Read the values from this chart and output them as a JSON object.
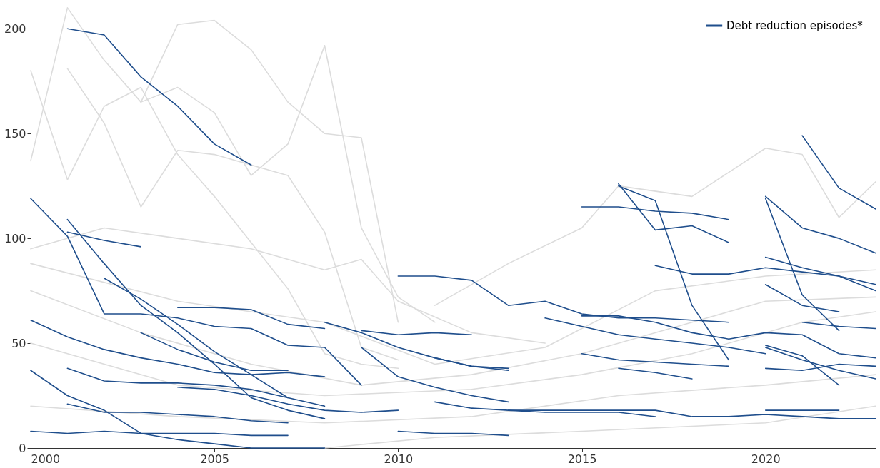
{
  "chart_data": {
    "type": "line",
    "xlim": [
      2000,
      2023
    ],
    "xticks": [
      2000,
      2005,
      2010,
      2015,
      2020
    ],
    "ylim": [
      0,
      212
    ],
    "yticks": [
      0,
      50,
      100,
      150,
      200
    ],
    "grid": false,
    "legend": "top right",
    "marker": "none",
    "line_style": "solid",
    "series": [
      {
        "color": "#dcdcdc",
        "x": [
          2000,
          2001,
          2002,
          2003,
          2004,
          2005,
          2006,
          2007,
          2008,
          2009,
          2010
        ],
        "values": [
          180,
          128,
          163,
          172,
          140,
          120,
          98,
          76,
          45,
          40,
          38
        ]
      },
      {
        "color": "#dcdcdc",
        "x": [
          2000,
          2001,
          2002,
          2003,
          2004,
          2005,
          2006,
          2007,
          2008,
          2009,
          2010
        ],
        "values": [
          137,
          210,
          185,
          165,
          202,
          204,
          190,
          165,
          150,
          148,
          60
        ]
      },
      {
        "color": "#dcdcdc",
        "x": [
          2001,
          2002,
          2003,
          2004,
          2005,
          2006,
          2007,
          2008,
          2009,
          2010
        ],
        "values": [
          181,
          155,
          115,
          142,
          140,
          135,
          130,
          103,
          48,
          42
        ]
      },
      {
        "color": "#dcdcdc",
        "x": [
          2003,
          2004,
          2005,
          2006,
          2007,
          2008,
          2009,
          2010,
          2011
        ],
        "values": [
          165,
          172,
          160,
          130,
          145,
          192,
          105,
          72,
          60
        ]
      },
      {
        "color": "#dcdcdc",
        "x": [
          2000,
          2002,
          2004,
          2006,
          2008,
          2009,
          2010,
          2012,
          2014
        ],
        "values": [
          95,
          105,
          100,
          95,
          85,
          90,
          70,
          55,
          50
        ]
      },
      {
        "color": "#dcdcdc",
        "x": [
          2011,
          2013,
          2015,
          2016,
          2018,
          2020,
          2021,
          2022,
          2023
        ],
        "values": [
          68,
          88,
          105,
          125,
          120,
          143,
          140,
          110,
          127
        ]
      },
      {
        "color": "#dcdcdc",
        "x": [
          2000,
          2003,
          2006,
          2009,
          2012,
          2015,
          2018,
          2020,
          2023
        ],
        "values": [
          75,
          55,
          40,
          30,
          35,
          45,
          60,
          70,
          72
        ]
      },
      {
        "color": "#dcdcdc",
        "x": [
          2000,
          2004,
          2008,
          2012,
          2015,
          2018,
          2021,
          2023
        ],
        "values": [
          50,
          30,
          25,
          28,
          35,
          45,
          60,
          65
        ]
      },
      {
        "color": "#dcdcdc",
        "x": [
          2000,
          2004,
          2008,
          2012,
          2016,
          2020,
          2023
        ],
        "values": [
          20,
          15,
          12,
          15,
          25,
          30,
          35
        ]
      },
      {
        "color": "#dcdcdc",
        "x": [
          2000,
          2004,
          2008,
          2011,
          2014,
          2017,
          2020,
          2023
        ],
        "values": [
          88,
          70,
          60,
          40,
          48,
          75,
          82,
          85
        ]
      },
      {
        "color": "#dcdcdc",
        "x": [
          2008,
          2011,
          2015,
          2020,
          2023
        ],
        "values": [
          0,
          5,
          8,
          12,
          20
        ]
      },
      {
        "name": "Debt reduction episodes*",
        "color": "#1f4e8c",
        "x": [
          2001,
          2002,
          2003,
          2004,
          2005,
          2006
        ],
        "values": [
          200,
          197,
          177,
          163,
          145,
          135
        ]
      },
      {
        "color": "#1f4e8c",
        "x": [
          2000,
          2001,
          2002,
          2003,
          2004,
          2005,
          2006,
          2007,
          2008,
          2009
        ],
        "values": [
          119,
          101,
          64,
          64,
          62,
          58,
          57,
          49,
          48,
          30
        ]
      },
      {
        "color": "#1f4e8c",
        "x": [
          2001,
          2002,
          2003,
          2004,
          2005,
          2006,
          2007,
          2008
        ],
        "values": [
          109,
          88,
          68,
          55,
          40,
          24,
          18,
          14
        ]
      },
      {
        "color": "#1f4e8c",
        "x": [
          2001,
          2002,
          2003
        ],
        "values": [
          103,
          99,
          96
        ]
      },
      {
        "color": "#1f4e8c",
        "x": [
          2000,
          2001,
          2002,
          2003,
          2004,
          2005,
          2006,
          2007,
          2008
        ],
        "values": [
          61,
          53,
          47,
          43,
          40,
          36,
          35,
          36,
          34
        ]
      },
      {
        "color": "#1f4e8c",
        "x": [
          2000,
          2001,
          2002,
          2003,
          2004,
          2005,
          2006,
          2007,
          2008
        ],
        "values": [
          37,
          25,
          18,
          7,
          4,
          2,
          0,
          0,
          0
        ]
      },
      {
        "color": "#1f4e8c",
        "x": [
          2000,
          2001,
          2002,
          2003,
          2004,
          2005,
          2006,
          2007
        ],
        "values": [
          8,
          7,
          8,
          7,
          7,
          7,
          6,
          6
        ]
      },
      {
        "color": "#1f4e8c",
        "x": [
          2001,
          2002,
          2003,
          2004,
          2005,
          2006,
          2007
        ],
        "values": [
          38,
          32,
          31,
          31,
          30,
          28,
          24
        ]
      },
      {
        "color": "#1f4e8c",
        "x": [
          2001,
          2002,
          2003,
          2004,
          2005,
          2006,
          2007
        ],
        "values": [
          21,
          17,
          17,
          16,
          15,
          13,
          12
        ]
      },
      {
        "color": "#1f4e8c",
        "x": [
          2002,
          2003,
          2004,
          2005,
          2006,
          2007,
          2008
        ],
        "values": [
          81,
          71,
          59,
          46,
          35,
          24,
          20
        ]
      },
      {
        "color": "#1f4e8c",
        "x": [
          2004,
          2005,
          2006,
          2007,
          2008
        ],
        "values": [
          67,
          67,
          66,
          59,
          57
        ]
      },
      {
        "color": "#1f4e8c",
        "x": [
          2003,
          2004,
          2005,
          2006,
          2007
        ],
        "values": [
          55,
          47,
          41,
          37,
          37
        ]
      },
      {
        "color": "#1f4e8c",
        "x": [
          2004,
          2005,
          2006,
          2007,
          2008,
          2009,
          2010
        ],
        "values": [
          29,
          28,
          25,
          21,
          18,
          17,
          18
        ]
      },
      {
        "color": "#1f4e8c",
        "x": [
          2008,
          2009,
          2010,
          2011,
          2012,
          2013
        ],
        "values": [
          60,
          55,
          48,
          43,
          39,
          37
        ]
      },
      {
        "color": "#1f4e8c",
        "x": [
          2009,
          2010,
          2011,
          2012
        ],
        "values": [
          56,
          54,
          55,
          54
        ]
      },
      {
        "color": "#1f4e8c",
        "x": [
          2009,
          2010,
          2011,
          2012,
          2013
        ],
        "values": [
          48,
          34,
          29,
          25,
          22
        ]
      },
      {
        "color": "#1f4e8c",
        "x": [
          2010,
          2011,
          2012,
          2013,
          2014,
          2015,
          2016,
          2017,
          2018,
          2019
        ],
        "values": [
          82,
          82,
          80,
          68,
          70,
          64,
          62,
          62,
          61,
          60
        ]
      },
      {
        "color": "#1f4e8c",
        "x": [
          2011,
          2012,
          2013
        ],
        "values": [
          43,
          39,
          38
        ]
      },
      {
        "color": "#1f4e8c",
        "x": [
          2010,
          2011,
          2012,
          2013
        ],
        "values": [
          8,
          7,
          7,
          6
        ]
      },
      {
        "color": "#1f4e8c",
        "x": [
          2011,
          2012,
          2013,
          2014,
          2015,
          2016,
          2017
        ],
        "values": [
          22,
          19,
          18,
          17,
          17,
          17,
          15
        ]
      },
      {
        "color": "#1f4e8c",
        "x": [
          2014,
          2015,
          2016,
          2017,
          2018,
          2019,
          2020
        ],
        "values": [
          62,
          58,
          54,
          52,
          50,
          48,
          45
        ]
      },
      {
        "color": "#1f4e8c",
        "x": [
          2015,
          2016,
          2017,
          2018,
          2019
        ],
        "values": [
          115,
          115,
          113,
          112,
          109
        ]
      },
      {
        "color": "#1f4e8c",
        "x": [
          2016,
          2017,
          2018,
          2019
        ],
        "values": [
          126,
          104,
          106,
          98
        ]
      },
      {
        "color": "#1f4e8c",
        "x": [
          2016,
          2017,
          2018,
          2019
        ],
        "values": [
          125,
          118,
          68,
          42
        ]
      },
      {
        "color": "#1f4e8c",
        "x": [
          2017,
          2018,
          2019,
          2020,
          2021,
          2022,
          2023
        ],
        "values": [
          87,
          83,
          83,
          86,
          84,
          82,
          78
        ]
      },
      {
        "color": "#1f4e8c",
        "x": [
          2015,
          2016,
          2017,
          2018,
          2019
        ],
        "values": [
          45,
          42,
          41,
          40,
          39
        ]
      },
      {
        "color": "#1f4e8c",
        "x": [
          2016,
          2017,
          2018
        ],
        "values": [
          38,
          36,
          33
        ]
      },
      {
        "color": "#1f4e8c",
        "x": [
          2021,
          2022,
          2023
        ],
        "values": [
          149,
          124,
          114
        ]
      },
      {
        "color": "#1f4e8c",
        "x": [
          2020,
          2021,
          2022,
          2023
        ],
        "values": [
          120,
          105,
          100,
          93
        ]
      },
      {
        "color": "#1f4e8c",
        "x": [
          2020,
          2021,
          2022
        ],
        "values": [
          119,
          73,
          56
        ]
      },
      {
        "color": "#1f4e8c",
        "x": [
          2020,
          2021,
          2022,
          2023
        ],
        "values": [
          91,
          86,
          82,
          75
        ]
      },
      {
        "color": "#1f4e8c",
        "x": [
          2020,
          2021,
          2022
        ],
        "values": [
          78,
          68,
          65
        ]
      },
      {
        "color": "#1f4e8c",
        "x": [
          2020,
          2021,
          2022
        ],
        "values": [
          49,
          44,
          30
        ]
      },
      {
        "color": "#1f4e8c",
        "x": [
          2020,
          2021,
          2022,
          2023
        ],
        "values": [
          48,
          42,
          37,
          33
        ]
      },
      {
        "color": "#1f4e8c",
        "x": [
          2015,
          2016,
          2017,
          2018,
          2019,
          2020,
          2021,
          2022,
          2023
        ],
        "values": [
          63,
          63,
          60,
          55,
          52,
          55,
          54,
          45,
          43
        ]
      },
      {
        "color": "#1f4e8c",
        "x": [
          2020,
          2021,
          2022
        ],
        "values": [
          18,
          18,
          18
        ]
      },
      {
        "color": "#1f4e8c",
        "x": [
          2013,
          2016,
          2017,
          2018,
          2019,
          2020,
          2021,
          2022,
          2023
        ],
        "values": [
          18,
          18,
          18,
          15,
          15,
          16,
          15,
          14,
          14
        ]
      },
      {
        "color": "#1f4e8c",
        "x": [
          2021,
          2022,
          2023
        ],
        "values": [
          60,
          58,
          57
        ]
      },
      {
        "color": "#1f4e8c",
        "x": [
          2020,
          2021,
          2022,
          2023
        ],
        "values": [
          38,
          37,
          40,
          39
        ]
      }
    ]
  }
}
